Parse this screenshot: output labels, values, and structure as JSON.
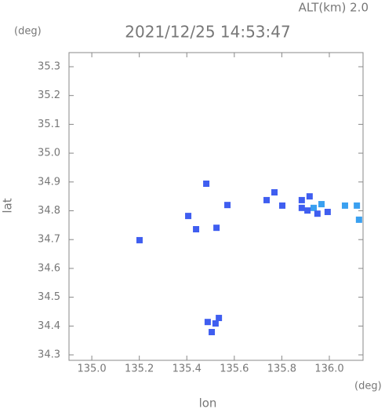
{
  "chart_data": {
    "type": "scatter",
    "alt_label": "ALT(km)  2.0",
    "title": "2021/12/25 14:53:47",
    "y_unit": "(deg)",
    "x_unit": "(deg)",
    "xlabel": "lon",
    "ylabel": "lat",
    "xlim": [
      134.904,
      136.142
    ],
    "ylim": [
      34.281,
      35.349
    ],
    "xticks": [
      {
        "value": 135.0,
        "label": "135.0"
      },
      135.2,
      135.4,
      135.6,
      135.8,
      {
        "value": 136.0,
        "label": "136.0"
      }
    ],
    "yticks": [
      35.3,
      35.2,
      35.1,
      {
        "value": 35.0,
        "label": "35.0"
      },
      34.9,
      34.8,
      34.7,
      34.6,
      34.5,
      34.4,
      34.3
    ],
    "x": [
      135.482,
      135.571,
      135.406,
      135.525,
      135.439,
      135.201,
      135.769,
      135.736,
      135.802,
      135.884,
      135.917,
      135.934,
      135.908,
      135.95,
      135.993,
      136.066,
      136.116,
      136.125,
      135.488,
      135.521,
      135.505,
      135.535,
      135.884,
      135.967
    ],
    "y": [
      34.894,
      34.82,
      34.782,
      34.741,
      34.736,
      34.698,
      34.864,
      34.837,
      34.818,
      34.837,
      34.85,
      34.81,
      34.801,
      34.79,
      34.796,
      34.818,
      34.818,
      34.769,
      34.414,
      34.409,
      34.379,
      34.428,
      34.81,
      34.823
    ],
    "colors": [
      "#3f5ef0",
      "#3f5ef0",
      "#3f5ef0",
      "#3f5ef0",
      "#3f5ef0",
      "#3f5ef0",
      "#3f5ef0",
      "#3f5ef0",
      "#3f5ef0",
      "#3f5ef0",
      "#3f5ef0",
      "#3aa0f0",
      "#3f5ef0",
      "#3f5ef0",
      "#3f5ef0",
      "#3aa0f0",
      "#3aa0f0",
      "#3aa0f0",
      "#3f5ef0",
      "#3f5ef0",
      "#3f5ef0",
      "#3f5ef0",
      "#3f5ef0",
      "#3aa0f0"
    ]
  }
}
